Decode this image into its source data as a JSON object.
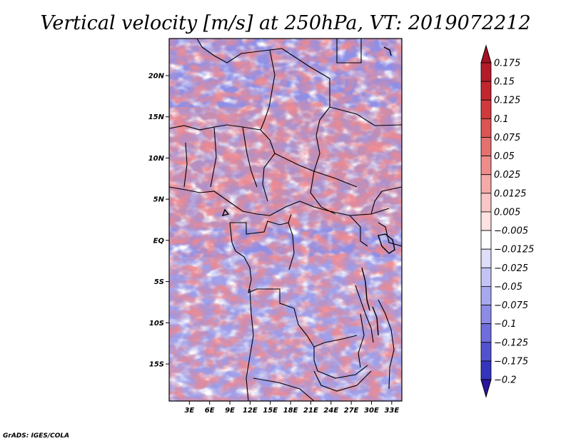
{
  "title": "Vertical velocity [m/s] at 250hPa, VT: 2019072212",
  "credit": "GrADS: IGES/COLA",
  "map": {
    "lat_range": [
      -19.5,
      24.5
    ],
    "lon_range": [
      0,
      34.5
    ],
    "lat_ticks": [
      {
        "value": 20,
        "label": "20N"
      },
      {
        "value": 15,
        "label": "15N"
      },
      {
        "value": 10,
        "label": "10N"
      },
      {
        "value": 5,
        "label": "5N"
      },
      {
        "value": 0,
        "label": "EQ"
      },
      {
        "value": -5,
        "label": "5S"
      },
      {
        "value": -10,
        "label": "10S"
      },
      {
        "value": -15,
        "label": "15S"
      }
    ],
    "lon_ticks": [
      {
        "value": 3,
        "label": "3E"
      },
      {
        "value": 6,
        "label": "6E"
      },
      {
        "value": 9,
        "label": "9E"
      },
      {
        "value": 12,
        "label": "12E"
      },
      {
        "value": 15,
        "label": "15E"
      },
      {
        "value": 18,
        "label": "18E"
      },
      {
        "value": 21,
        "label": "21E"
      },
      {
        "value": 24,
        "label": "24E"
      },
      {
        "value": 27,
        "label": "27E"
      },
      {
        "value": 30,
        "label": "30E"
      },
      {
        "value": 33,
        "label": "33E"
      }
    ]
  },
  "colorbar": {
    "levels": [
      {
        "label": "0.175",
        "color": "#b51a2a"
      },
      {
        "label": "0.15",
        "color": "#c3262f"
      },
      {
        "label": "0.125",
        "color": "#d03a3f"
      },
      {
        "label": "0.1",
        "color": "#dc5454"
      },
      {
        "label": "0.075",
        "color": "#e57070"
      },
      {
        "label": "0.05",
        "color": "#ee8c8c"
      },
      {
        "label": "0.025",
        "color": "#f5a9a9"
      },
      {
        "label": "0.0125",
        "color": "#fac5c5"
      },
      {
        "label": "0.005",
        "color": "#fde2e2"
      },
      {
        "label": "−0.005",
        "color": "#ffffff"
      },
      {
        "label": "−0.0125",
        "color": "#dedef8"
      },
      {
        "label": "−0.025",
        "color": "#c4c4f4"
      },
      {
        "label": "−0.05",
        "color": "#a8a8ee"
      },
      {
        "label": "−0.075",
        "color": "#8c8ce6"
      },
      {
        "label": "−0.1",
        "color": "#6e6edc"
      },
      {
        "label": "−0.125",
        "color": "#5252d0"
      },
      {
        "label": "−0.175",
        "color": "#3434be"
      },
      {
        "label": "−0.2",
        "color": "#1f1fa6"
      }
    ],
    "top_color": "#a41224",
    "bottom_color": "#2a14a0"
  }
}
